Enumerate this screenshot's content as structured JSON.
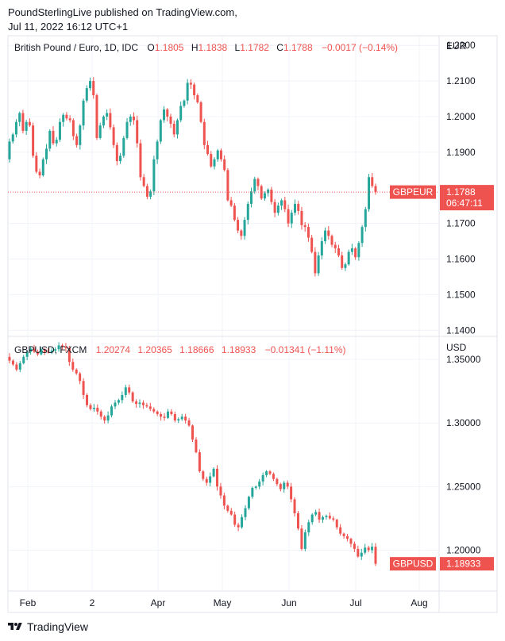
{
  "header": {
    "publisher": "PoundSterlingLive published on TradingView.com,",
    "timestamp": "Jul 11, 2022 16:12 UTC+1"
  },
  "footer": {
    "brand": "TradingView",
    "logo_icon": "tradingview-logo-icon"
  },
  "colors": {
    "up": "#26a69a",
    "down": "#ef5350",
    "grid": "#f0f3fa",
    "border": "#e0e3eb"
  },
  "chart_data": [
    {
      "type": "candlestick",
      "symbol": "British Pound / Euro, 1D, IDC",
      "legend": {
        "name": "British Pound / Euro, 1D, IDC",
        "o_label": "O",
        "o": "1.1805",
        "h_label": "H",
        "h": "1.1838",
        "l_label": "L",
        "l": "1.1782",
        "c_label": "C",
        "c": "1.1788",
        "change": "−0.0017 (−0.14%)"
      },
      "currency": "EUR",
      "y_ticks": [
        "1.2200",
        "1.2100",
        "1.2000",
        "1.1900",
        "1.1700",
        "1.1600",
        "1.1500",
        "1.1400"
      ],
      "ylim": [
        1.1385,
        1.2225
      ],
      "last_price_label": "GBPEUR",
      "last_price": "1.1788",
      "countdown": "06:47:11",
      "close_start": 1.188,
      "closes": [
        1.193,
        1.195,
        1.1985,
        1.201,
        1.196,
        1.1985,
        1.1975,
        1.189,
        1.1845,
        1.1835,
        1.188,
        1.191,
        1.196,
        1.1925,
        1.1935,
        1.1985,
        1.2005,
        1.1995,
        1.199,
        1.1945,
        1.192,
        1.1975,
        1.2045,
        1.208,
        1.21,
        1.206,
        1.194,
        1.1975,
        1.2,
        1.201,
        1.197,
        1.192,
        1.1875,
        1.189,
        1.194,
        1.1985,
        1.2,
        1.199,
        1.1925,
        1.183,
        1.1805,
        1.1775,
        1.179,
        1.188,
        1.193,
        1.199,
        1.202,
        1.2,
        1.198,
        1.195,
        1.199,
        1.203,
        1.2045,
        1.2095,
        1.209,
        1.206,
        1.204,
        1.1985,
        1.192,
        1.1895,
        1.186,
        1.188,
        1.1905,
        1.188,
        1.185,
        1.1765,
        1.175,
        1.171,
        1.168,
        1.1665,
        1.171,
        1.1755,
        1.179,
        1.1825,
        1.1805,
        1.177,
        1.1785,
        1.1795,
        1.176,
        1.173,
        1.175,
        1.1765,
        1.174,
        1.17,
        1.173,
        1.1755,
        1.1735,
        1.1695,
        1.169,
        1.166,
        1.162,
        1.156,
        1.161,
        1.165,
        1.168,
        1.1665,
        1.164,
        1.163,
        1.161,
        1.1575,
        1.1585,
        1.162,
        1.163,
        1.1605,
        1.1645,
        1.169,
        1.174,
        1.183,
        1.1805,
        1.1788
      ]
    },
    {
      "type": "candlestick",
      "symbol": "GBPUSD, FXCM",
      "legend": {
        "name": "GBPUSD, FXCM",
        "o": "1.20274",
        "h": "1.20365",
        "l": "1.18666",
        "c": "1.18933",
        "change": "−0.01341 (−1.11%)"
      },
      "currency": "USD",
      "y_ticks": [
        "1.35000",
        "1.30000",
        "1.25000",
        "1.20000"
      ],
      "ylim": [
        1.1685,
        1.3675
      ],
      "last_price_label": "GBPUSD",
      "last_price": "1.18933",
      "close_start": 1.352,
      "closes": [
        1.349,
        1.346,
        1.342,
        1.347,
        1.352,
        1.356,
        1.3585,
        1.356,
        1.354,
        1.358,
        1.356,
        1.3555,
        1.357,
        1.358,
        1.361,
        1.36,
        1.359,
        1.348,
        1.342,
        1.339,
        1.333,
        1.322,
        1.314,
        1.311,
        1.312,
        1.309,
        1.305,
        1.302,
        1.306,
        1.313,
        1.316,
        1.318,
        1.322,
        1.328,
        1.324,
        1.317,
        1.315,
        1.316,
        1.314,
        1.313,
        1.311,
        1.309,
        1.307,
        1.305,
        1.304,
        1.309,
        1.307,
        1.302,
        1.303,
        1.305,
        1.302,
        1.298,
        1.287,
        1.277,
        1.262,
        1.256,
        1.253,
        1.258,
        1.264,
        1.25,
        1.243,
        1.235,
        1.231,
        1.228,
        1.22,
        1.218,
        1.226,
        1.233,
        1.242,
        1.249,
        1.25,
        1.254,
        1.259,
        1.262,
        1.26,
        1.256,
        1.252,
        1.248,
        1.253,
        1.25,
        1.24,
        1.229,
        1.217,
        1.201,
        1.214,
        1.222,
        1.228,
        1.23,
        1.224,
        1.226,
        1.227,
        1.225,
        1.224,
        1.218,
        1.213,
        1.211,
        1.209,
        1.205,
        1.201,
        1.195,
        1.198,
        1.202,
        1.2,
        1.2027,
        1.1893
      ]
    }
  ],
  "x_axis": {
    "ticks": [
      "Feb",
      "2",
      "Apr",
      "May",
      "Jun",
      "Jul",
      "Aug"
    ]
  }
}
